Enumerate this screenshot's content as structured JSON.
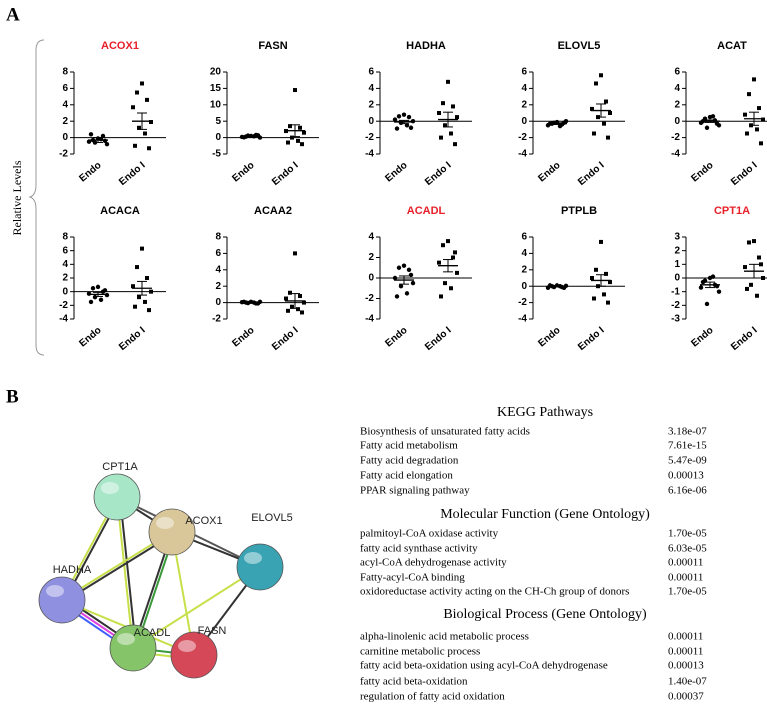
{
  "panel_labels": [
    "A",
    "B"
  ],
  "y_axis_label": "Relative Levels",
  "chart_data": [
    {
      "type": "dot",
      "title": "ACOX1",
      "title_color": "#e8202a",
      "categories": [
        "Endo",
        "Endo I"
      ],
      "markers": [
        "circle",
        "square"
      ],
      "values": [
        [
          -0.1,
          -0.3,
          0.2,
          -0.5,
          -0.8,
          -0.6,
          -0.2,
          0.4,
          -0.4
        ],
        [
          6.6,
          5.5,
          4.6,
          3.7,
          1.9,
          1.2,
          0.5,
          -1,
          -1.3
        ]
      ],
      "means": [
        -0.3,
        2.0
      ],
      "errors": [
        0.3,
        1.0
      ],
      "ylim": [
        -2,
        8
      ],
      "yticks": [
        -2,
        0,
        2,
        4,
        6,
        8
      ]
    },
    {
      "type": "dot",
      "title": "FASN",
      "title_color": "#000000",
      "categories": [
        "Endo",
        "Endo I"
      ],
      "markers": [
        "circle",
        "square"
      ],
      "values": [
        [
          0.5,
          0.3,
          0.8,
          0.2,
          0,
          0.6,
          0.4,
          0.1,
          0.7
        ],
        [
          14.5,
          3.5,
          3,
          2,
          1.5,
          0,
          -1,
          -1.5,
          -2
        ]
      ],
      "means": [
        0.4,
        2.1
      ],
      "errors": [
        0.1,
        1.8
      ],
      "ylim": [
        -5,
        20
      ],
      "yticks": [
        -5,
        0,
        5,
        10,
        15,
        20
      ]
    },
    {
      "type": "dot",
      "title": "HADHA",
      "title_color": "#000000",
      "categories": [
        "Endo",
        "Endo I"
      ],
      "markers": [
        "circle",
        "square"
      ],
      "values": [
        [
          0.8,
          0.6,
          0.5,
          0.2,
          0,
          -0.2,
          -0.5,
          -0.9,
          -0.8
        ],
        [
          4.8,
          2.2,
          1.8,
          1,
          0.5,
          -0.5,
          -1.5,
          -2,
          -2.8
        ]
      ],
      "means": [
        -0.1,
        0.2
      ],
      "errors": [
        0.2,
        0.9
      ],
      "ylim": [
        -4,
        6
      ],
      "yticks": [
        -4,
        -2,
        0,
        2,
        4,
        6
      ]
    },
    {
      "type": "dot",
      "title": "ELOVL5",
      "title_color": "#000000",
      "categories": [
        "Endo",
        "Endo I"
      ],
      "markers": [
        "circle",
        "square"
      ],
      "values": [
        [
          -0.1,
          -0.3,
          -0.4,
          -0.5,
          0,
          -0.2,
          -0.6,
          -0.3,
          -0.2
        ],
        [
          5.6,
          4.6,
          2.4,
          1.5,
          1,
          0.5,
          -0.3,
          -1.5,
          -2
        ]
      ],
      "means": [
        -0.3,
        1.3
      ],
      "errors": [
        0.1,
        0.8
      ],
      "ylim": [
        -4,
        6
      ],
      "yticks": [
        -4,
        -2,
        0,
        2,
        4,
        6
      ]
    },
    {
      "type": "dot",
      "title": "ACAT",
      "title_color": "#000000",
      "categories": [
        "Endo",
        "Endo I"
      ],
      "markers": [
        "circle",
        "square"
      ],
      "values": [
        [
          0.5,
          0.3,
          0.1,
          -0.2,
          -0.5,
          -0.8,
          0.6,
          0,
          -0.3
        ],
        [
          5.1,
          3.3,
          1.6,
          0.8,
          0.2,
          -0.5,
          -1,
          -1.5,
          -2.7
        ]
      ],
      "means": [
        0,
        0.3
      ],
      "errors": [
        0.15,
        0.8
      ],
      "ylim": [
        -4,
        6
      ],
      "yticks": [
        -4,
        -2,
        0,
        2,
        4,
        6
      ]
    },
    {
      "type": "dot",
      "title": "ACACA",
      "title_color": "#000000",
      "categories": [
        "Endo",
        "Endo I"
      ],
      "markers": [
        "circle",
        "square"
      ],
      "values": [
        [
          0.7,
          0.5,
          0,
          -0.3,
          -0.5,
          -0.8,
          -1.2,
          -1.5,
          0.2
        ],
        [
          6.3,
          3.6,
          2,
          0.8,
          0,
          -0.8,
          -1.5,
          -2.2,
          -2.7
        ]
      ],
      "means": [
        -0.4,
        0.5
      ],
      "errors": [
        0.3,
        1.0
      ],
      "ylim": [
        -4,
        8
      ],
      "yticks": [
        -4,
        -2,
        0,
        2,
        4,
        6,
        8
      ]
    },
    {
      "type": "dot",
      "title": "ACAA2",
      "title_color": "#000000",
      "categories": [
        "Endo",
        "Endo I"
      ],
      "markers": [
        "circle",
        "square"
      ],
      "values": [
        [
          0.1,
          0,
          -0.1,
          0.05,
          0.1,
          -0.05,
          0,
          0.1,
          -0.1
        ],
        [
          6,
          1.2,
          0.8,
          0.5,
          0,
          -0.5,
          -0.8,
          -1,
          -1.2
        ]
      ],
      "means": [
        0,
        0.2
      ],
      "errors": [
        0.03,
        0.9
      ],
      "ylim": [
        -2,
        8
      ],
      "yticks": [
        -2,
        0,
        2,
        4,
        6,
        8
      ]
    },
    {
      "type": "dot",
      "title": "ACADL",
      "title_color": "#e8202a",
      "categories": [
        "Endo",
        "Endo I"
      ],
      "markers": [
        "circle",
        "square"
      ],
      "values": [
        [
          1.2,
          1,
          0.8,
          0,
          -0.5,
          -0.8,
          -1.5,
          -1.8,
          0.3
        ],
        [
          3.6,
          3.2,
          2,
          1.5,
          0.5,
          -0.5,
          -1,
          -1.8,
          2.5
        ]
      ],
      "means": [
        -0.2,
        1.2
      ],
      "errors": [
        0.4,
        0.6
      ],
      "ylim": [
        -4,
        4
      ],
      "yticks": [
        -4,
        -2,
        0,
        2,
        4
      ]
    },
    {
      "type": "dot",
      "title": "PTPLB",
      "title_color": "#000000",
      "categories": [
        "Endo",
        "Endo I"
      ],
      "markers": [
        "circle",
        "square"
      ],
      "values": [
        [
          0.1,
          0,
          -0.1,
          -0.2,
          0.05,
          -0.1,
          0,
          0.1,
          -0.2
        ],
        [
          5.4,
          2,
          1.5,
          1,
          0.5,
          0,
          -1,
          -1.5,
          -2
        ]
      ],
      "means": [
        0,
        0.7
      ],
      "errors": [
        0.05,
        0.7
      ],
      "ylim": [
        -4,
        6
      ],
      "yticks": [
        -4,
        -2,
        0,
        2,
        4,
        6
      ]
    },
    {
      "type": "dot",
      "title": "CPT1A",
      "title_color": "#e8202a",
      "categories": [
        "Endo",
        "Endo I"
      ],
      "markers": [
        "circle",
        "square"
      ],
      "values": [
        [
          0,
          -0.2,
          -0.5,
          -0.7,
          -1,
          -1.9,
          0.1,
          -0.3,
          -0.6
        ],
        [
          2.7,
          2.6,
          1.5,
          0.8,
          0,
          -0.5,
          -1.3,
          -0.8,
          1
        ]
      ],
      "means": [
        -0.5,
        0.5
      ],
      "errors": [
        0.2,
        0.5
      ],
      "ylim": [
        -3,
        3
      ],
      "yticks": [
        -3,
        -2,
        -1,
        0,
        1,
        2,
        3
      ]
    }
  ],
  "network": {
    "nodes": [
      "CPT1A",
      "ACOX1",
      "ELOVL5",
      "HADHA",
      "ACADL",
      "FASN"
    ]
  },
  "tables": [
    {
      "title": "KEGG Pathways",
      "rows": [
        [
          "Biosynthesis of unsaturated fatty acids",
          "3.18e-07"
        ],
        [
          "Fatty acid metabolism",
          "7.61e-15"
        ],
        [
          "Fatty acid degradation",
          "5.47e-09"
        ],
        [
          "Fatty acid elongation",
          "0.00013"
        ],
        [
          "PPAR signaling pathway",
          "6.16e-06"
        ]
      ]
    },
    {
      "title": "Molecular Function (Gene Ontology)",
      "rows": [
        [
          "palmitoyl-CoA oxidase activity",
          "1.70e-05"
        ],
        [
          "fatty acid synthase activity",
          "6.03e-05"
        ],
        [
          "acyl-CoA dehydrogenase activity",
          "0.00011"
        ],
        [
          "Fatty-acyl-CoA binding",
          "0.00011"
        ],
        [
          "oxidoreductase activity acting on the CH-Ch group of donors",
          "1.70e-05"
        ]
      ]
    },
    {
      "title": "Biological Process (Gene Ontology)",
      "rows": [
        [
          "alpha-linolenic acid metabolic process",
          "0.00011"
        ],
        [
          "carnitine metabolic process",
          "0.00011"
        ],
        [
          "fatty acid beta-oxidation using acyl-CoA dehydrogenase",
          "0.00013"
        ],
        [
          "fatty acid beta-oxidation",
          "1.40e-07"
        ],
        [
          "regulation of fatty acid oxidation",
          "0.00037"
        ]
      ]
    }
  ]
}
